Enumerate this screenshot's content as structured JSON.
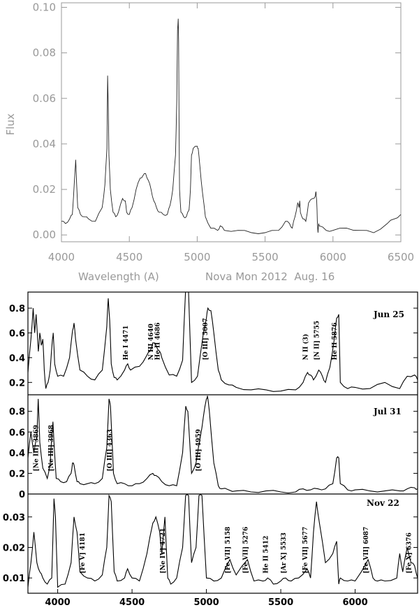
{
  "chart_data": [
    {
      "type": "line",
      "title": "Nova Mon 2012  Aug. 16",
      "xlabel": "Wavelength (A)",
      "ylabel": "Flux",
      "xlim": [
        4000,
        6500
      ],
      "ylim": [
        -0.003,
        0.102
      ],
      "xticks": [
        "4000",
        "4500",
        "5000",
        "5500",
        "6000",
        "6500"
      ],
      "yticks": [
        "0.00",
        "0.02",
        "0.04",
        "0.06",
        "0.08",
        "0.10"
      ],
      "ytick_values": [
        0,
        0.02,
        0.04,
        0.06,
        0.08,
        0.1
      ],
      "xtick_values": [
        4000,
        4500,
        5000,
        5500,
        6000,
        6500
      ],
      "series": [
        {
          "x": [
            4000,
            4030,
            4060,
            4080,
            4090,
            4100,
            4105,
            4110,
            4120,
            4140,
            4170,
            4200,
            4250,
            4300,
            4320,
            4335,
            4340,
            4345,
            4350,
            4360,
            4380,
            4400,
            4420,
            4450,
            4470,
            4480,
            4500,
            4520,
            4550,
            4580,
            4600,
            4620,
            4640,
            4660,
            4680,
            4700,
            4720,
            4750,
            4780,
            4800,
            4820,
            4840,
            4850,
            4855,
            4860,
            4863,
            4866,
            4870,
            4880,
            4900,
            4920,
            4940,
            4950,
            4958,
            4970,
            5000,
            5007,
            5020,
            5040,
            5060,
            5100,
            5150,
            5170,
            5200,
            5300,
            5400,
            5500,
            5600,
            5650,
            5680,
            5700,
            5720,
            5740,
            5750,
            5755,
            5760,
            5780,
            5800,
            5820,
            5850,
            5870,
            5875,
            5880,
            5885,
            5890,
            5895,
            5900,
            5950,
            6000,
            6100,
            6200,
            6300,
            6400,
            6450,
            6500
          ],
          "values": [
            0.006,
            0.005,
            0.007,
            0.009,
            0.018,
            0.028,
            0.033,
            0.025,
            0.012,
            0.009,
            0.008,
            0.007,
            0.006,
            0.012,
            0.022,
            0.038,
            0.07,
            0.055,
            0.035,
            0.02,
            0.01,
            0.008,
            0.01,
            0.016,
            0.015,
            0.01,
            0.009,
            0.012,
            0.02,
            0.025,
            0.026,
            0.027,
            0.024,
            0.02,
            0.015,
            0.012,
            0.01,
            0.009,
            0.009,
            0.013,
            0.02,
            0.035,
            0.06,
            0.09,
            0.095,
            0.085,
            0.05,
            0.02,
            0.01,
            0.008,
            0.008,
            0.011,
            0.02,
            0.035,
            0.038,
            0.039,
            0.038,
            0.03,
            0.018,
            0.008,
            0.003,
            0.002,
            0.004,
            0.002,
            0.002,
            0.001,
            0.001,
            0.002,
            0.006,
            0.005,
            0.003,
            0.008,
            0.014,
            0.012,
            0.015,
            0.01,
            0.007,
            0.006,
            0.014,
            0.016,
            0.017,
            0.019,
            0.015,
            0.006,
            0.001,
            0.005,
            0.004,
            0.002,
            0.002,
            0.003,
            0.002,
            0.001,
            0.005,
            0.007,
            0.009
          ]
        }
      ]
    },
    {
      "type": "line",
      "date_label": "Jun 25",
      "xlim": [
        3800,
        6420
      ],
      "ylim": [
        0.1,
        0.93
      ],
      "yticks": [
        "0.2",
        "0.4",
        "0.6",
        "0.8"
      ],
      "ytick_values": [
        0.2,
        0.4,
        0.6,
        0.8
      ],
      "line_labels": [
        {
          "text": "He I 4471",
          "x": 4471
        },
        {
          "text": "N III 4640",
          "x": 4640
        },
        {
          "text": "He II 4686",
          "x": 4686
        },
        {
          "text": "[O III] 5007",
          "x": 5007
        },
        {
          "text": "N II (3)",
          "x": 5680
        },
        {
          "text": "[N II] 5755",
          "x": 5755
        },
        {
          "text": "He II 5876",
          "x": 5876
        }
      ],
      "series": [
        {
          "x": [
            3800,
            3820,
            3835,
            3845,
            3855,
            3870,
            3880,
            3890,
            3900,
            3910,
            3920,
            3935,
            3950,
            3965,
            3970,
            3980,
            4000,
            4040,
            4080,
            4100,
            4110,
            4120,
            4150,
            4200,
            4250,
            4300,
            4330,
            4340,
            4350,
            4360,
            4380,
            4400,
            4450,
            4471,
            4490,
            4550,
            4600,
            4620,
            4640,
            4660,
            4686,
            4700,
            4750,
            4800,
            4840,
            4860,
            4880,
            4900,
            4940,
            4980,
            5000,
            5010,
            5030,
            5050,
            5080,
            5100,
            5150,
            5200,
            5300,
            5400,
            5500,
            5600,
            5650,
            5680,
            5700,
            5720,
            5755,
            5780,
            5800,
            5830,
            5860,
            5876,
            5890,
            5900,
            5950,
            6000,
            6100,
            6200,
            6300,
            6350,
            6400,
            6420
          ],
          "values": [
            0.28,
            0.55,
            0.8,
            0.6,
            0.75,
            0.45,
            0.6,
            0.5,
            0.55,
            0.3,
            0.15,
            0.2,
            0.3,
            0.55,
            0.6,
            0.35,
            0.25,
            0.25,
            0.4,
            0.62,
            0.68,
            0.55,
            0.3,
            0.25,
            0.22,
            0.3,
            0.65,
            0.88,
            0.7,
            0.35,
            0.24,
            0.22,
            0.3,
            0.35,
            0.3,
            0.33,
            0.42,
            0.45,
            0.52,
            0.5,
            0.45,
            0.4,
            0.26,
            0.25,
            0.38,
            0.95,
            0.93,
            0.2,
            0.25,
            0.6,
            0.72,
            0.8,
            0.78,
            0.6,
            0.3,
            0.22,
            0.18,
            0.16,
            0.14,
            0.14,
            0.13,
            0.14,
            0.2,
            0.28,
            0.26,
            0.22,
            0.3,
            0.25,
            0.2,
            0.32,
            0.55,
            0.72,
            0.75,
            0.2,
            0.15,
            0.16,
            0.15,
            0.2,
            0.15,
            0.25,
            0.26,
            0.22
          ]
        }
      ]
    },
    {
      "type": "line",
      "date_label": "Jul 31",
      "xlim": [
        3800,
        6420
      ],
      "ylim": [
        0,
        0.96
      ],
      "yticks": [
        "0",
        "0.2",
        "0.4",
        "0.6",
        "0.8"
      ],
      "ytick_values": [
        0,
        0.2,
        0.4,
        0.6,
        0.8
      ],
      "line_labels": [
        {
          "text": "[Ne III] 3869",
          "x": 3869
        },
        {
          "text": "[Ne III] 3968",
          "x": 3968
        },
        {
          "text": "[O III] 4363",
          "x": 4363
        },
        {
          "text": "[O III] 4959",
          "x": 4959
        }
      ],
      "series": [
        {
          "x": [
            3800,
            3820,
            3840,
            3860,
            3869,
            3880,
            3900,
            3930,
            3950,
            3960,
            3968,
            3975,
            3990,
            4020,
            4060,
            4090,
            4100,
            4110,
            4130,
            4150,
            4200,
            4250,
            4300,
            4330,
            4345,
            4355,
            4363,
            4375,
            4400,
            4450,
            4500,
            4550,
            4600,
            4640,
            4660,
            4700,
            4750,
            4800,
            4840,
            4861,
            4875,
            4900,
            4930,
            4959,
            4980,
            5000,
            5007,
            5020,
            5050,
            5080,
            5100,
            5150,
            5200,
            5300,
            5400,
            5500,
            5600,
            5650,
            5700,
            5750,
            5800,
            5850,
            5876,
            5890,
            5900,
            5950,
            6000,
            6100,
            6200,
            6300,
            6350,
            6400,
            6420
          ],
          "values": [
            0.35,
            0.6,
            0.4,
            0.55,
            0.92,
            0.5,
            0.25,
            0.15,
            0.3,
            0.55,
            0.7,
            0.5,
            0.15,
            0.12,
            0.12,
            0.2,
            0.3,
            0.28,
            0.12,
            0.1,
            0.1,
            0.1,
            0.15,
            0.45,
            0.92,
            0.85,
            0.6,
            0.2,
            0.1,
            0.1,
            0.08,
            0.1,
            0.15,
            0.2,
            0.18,
            0.12,
            0.08,
            0.08,
            0.4,
            0.85,
            0.8,
            0.2,
            0.3,
            0.55,
            0.75,
            0.92,
            0.95,
            0.8,
            0.3,
            0.08,
            0.05,
            0.04,
            0.03,
            0.02,
            0.03,
            0.02,
            0.02,
            0.05,
            0.04,
            0.05,
            0.05,
            0.1,
            0.35,
            0.35,
            0.1,
            0.04,
            0.04,
            0.03,
            0.03,
            0.03,
            0.05,
            0.06,
            0.05
          ]
        }
      ]
    },
    {
      "type": "line",
      "date_label": "Nov 22",
      "xlabel_ticks": [
        "4000",
        "4500",
        "5000",
        "5500",
        "6000"
      ],
      "xtick_values": [
        4000,
        4500,
        5000,
        5500,
        6000
      ],
      "xlim": [
        3800,
        6420
      ],
      "ylim": [
        0.005,
        0.0375
      ],
      "yticks": [
        "0.01",
        "0.02",
        "0.03"
      ],
      "ytick_values": [
        0.01,
        0.02,
        0.03
      ],
      "line_labels": [
        {
          "text": "[Fe V] 4181",
          "x": 4181
        },
        {
          "text": "[Ne IV] 4721",
          "x": 4721
        },
        {
          "text": "[Fe VII] 5158",
          "x": 5158
        },
        {
          "text": "[Fe VII] 5276",
          "x": 5276
        },
        {
          "text": "He II 5412",
          "x": 5412
        },
        {
          "text": "[Ar X] 5533",
          "x": 5533
        },
        {
          "text": "[Fe VII] 5677",
          "x": 5677
        },
        {
          "text": "[Fe VII] 6087",
          "x": 6087
        },
        {
          "text": "[Fe X] 6376",
          "x": 6376
        }
      ],
      "series": [
        {
          "x": [
            3800,
            3820,
            3840,
            3860,
            3880,
            3900,
            3930,
            3960,
            3975,
            3985,
            4000,
            4050,
            4090,
            4110,
            4130,
            4150,
            4200,
            4250,
            4300,
            4330,
            4345,
            4360,
            4380,
            4400,
            4450,
            4470,
            4500,
            4550,
            4600,
            4640,
            4660,
            4686,
            4700,
            4721,
            4740,
            4760,
            4800,
            4840,
            4860,
            4880,
            4900,
            4930,
            4950,
            4970,
            5000,
            5050,
            5100,
            5158,
            5200,
            5276,
            5320,
            5380,
            5412,
            5450,
            5500,
            5533,
            5570,
            5620,
            5677,
            5700,
            5720,
            5740,
            5760,
            5800,
            5850,
            5876,
            5890,
            5900,
            5950,
            6000,
            6087,
            6120,
            6150,
            6200,
            6280,
            6300,
            6320,
            6350,
            6376,
            6400,
            6420
          ],
          "values": [
            0.007,
            0.015,
            0.025,
            0.015,
            0.012,
            0.01,
            0.008,
            0.01,
            0.036,
            0.03,
            0.007,
            0.008,
            0.015,
            0.03,
            0.025,
            0.012,
            0.01,
            0.009,
            0.011,
            0.02,
            0.037,
            0.035,
            0.012,
            0.009,
            0.01,
            0.013,
            0.01,
            0.009,
            0.018,
            0.028,
            0.03,
            0.025,
            0.018,
            0.03,
            0.01,
            0.008,
            0.01,
            0.02,
            0.037,
            0.037,
            0.015,
            0.02,
            0.037,
            0.037,
            0.01,
            0.009,
            0.01,
            0.016,
            0.011,
            0.016,
            0.009,
            0.009,
            0.01,
            0.008,
            0.009,
            0.01,
            0.009,
            0.01,
            0.013,
            0.01,
            0.025,
            0.035,
            0.028,
            0.015,
            0.018,
            0.022,
            0.008,
            0.01,
            0.009,
            0.009,
            0.016,
            0.01,
            0.009,
            0.009,
            0.01,
            0.018,
            0.012,
            0.02,
            0.015,
            0.014,
            0.01
          ]
        }
      ]
    }
  ]
}
